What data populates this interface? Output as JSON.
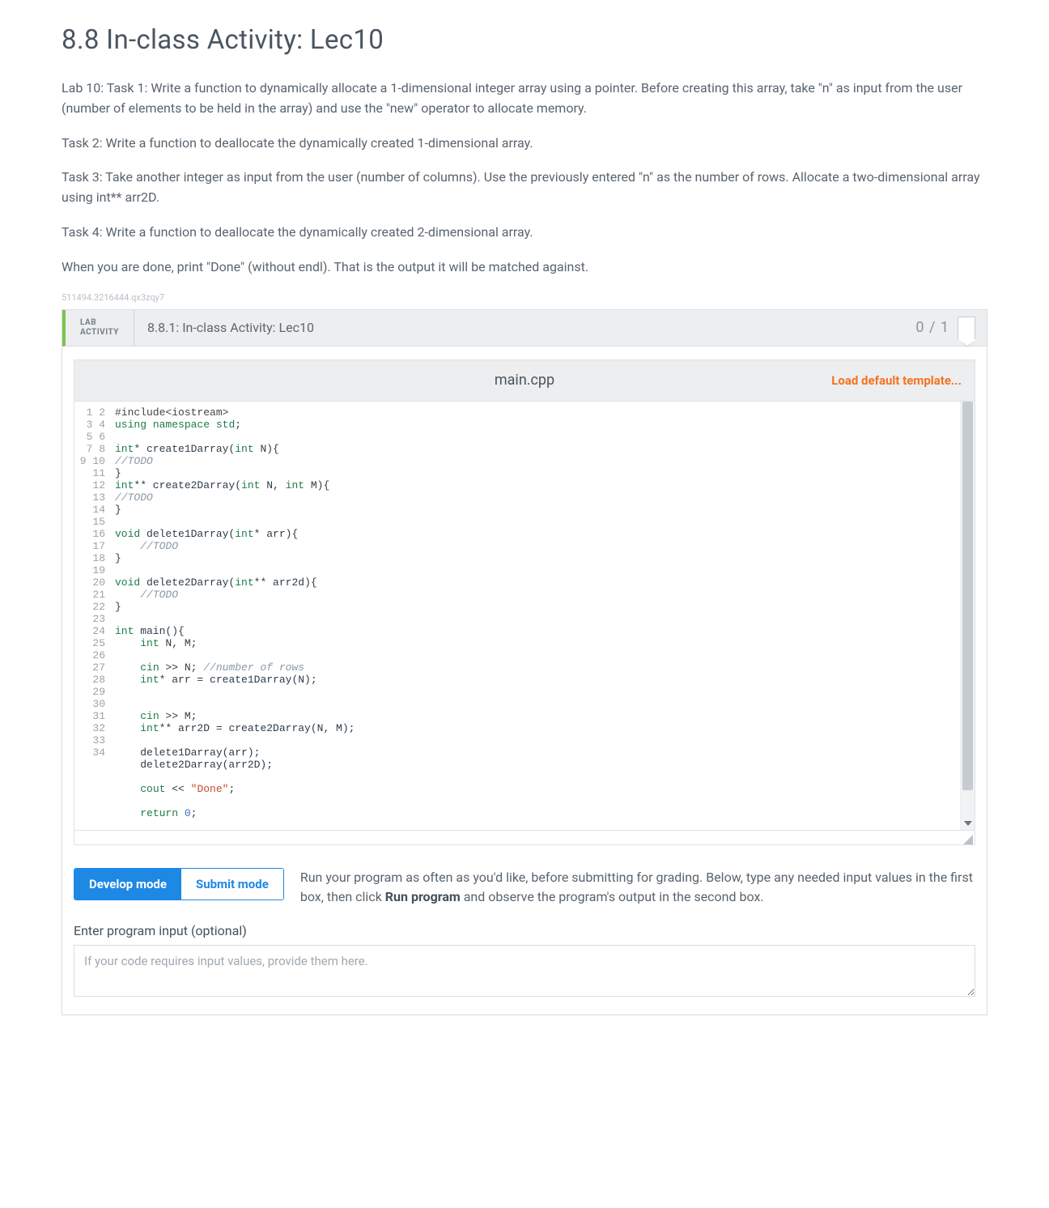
{
  "section": {
    "title": "8.8 In-class Activity: Lec10"
  },
  "tasks": {
    "p1": "Lab 10: Task 1: Write a function to dynamically allocate a 1-dimensional integer array using a pointer. Before creating this array, take \"n\" as input from the user (number of elements to be held in the array) and use the \"new\" operator to allocate memory.",
    "p2": "Task 2: Write a function to deallocate the dynamically created 1-dimensional array.",
    "p3": "Task 3: Take another integer as input from the user (number of columns). Use the previously entered \"n\" as the number of rows. Allocate a two-dimensional array using int** arr2D.",
    "p4": "Task 4: Write a function to deallocate the dynamically created 2-dimensional array.",
    "p5": "When you are done, print \"Done\" (without endl). That is the output it will be matched against."
  },
  "meta": {
    "id": "511494.3216444.qx3zqy7"
  },
  "lab": {
    "type_line1": "LAB",
    "type_line2": "ACTIVITY",
    "title": "8.8.1: In-class Activity: Lec10",
    "score": "0 / 1",
    "file_name": "main.cpp",
    "load_template": "Load default template...",
    "code_lines": [
      "#include<iostream>",
      "using namespace std;",
      "",
      "int* create1Darray(int N){",
      "//TODO",
      "}",
      "int** create2Darray(int N, int M){",
      "//TODO",
      "}",
      "",
      "void delete1Darray(int* arr){",
      "    //TODO",
      "}",
      "",
      "void delete2Darray(int** arr2d){",
      "    //TODO",
      "}",
      "",
      "int main(){",
      "    int N, M;",
      "",
      "    cin >> N; //number of rows",
      "    int* arr = create1Darray(N);",
      "",
      "",
      "    cin >> M;",
      "    int** arr2D = create2Darray(N, M);",
      "",
      "    delete1Darray(arr);",
      "    delete2Darray(arr2D);",
      "",
      "    cout << \"Done\";",
      "",
      "    return 0;"
    ]
  },
  "modes": {
    "develop": "Develop mode",
    "submit": "Submit mode",
    "help_pre": "Run your program as often as you'd like, before submitting for grading. Below, type any needed input values in the first box, then click ",
    "help_bold": "Run program",
    "help_post": " and observe the program's output in the second box."
  },
  "input": {
    "label": "Enter program input (optional)",
    "placeholder": "If your code requires input values, provide them here."
  },
  "colors": {
    "accent_green": "#7dc24b",
    "accent_blue": "#1e88e5",
    "accent_orange": "#f37321",
    "bg_panel": "#eceeef",
    "border": "#d8dde2",
    "text_primary": "#46515a",
    "text_muted": "#8a939c"
  }
}
